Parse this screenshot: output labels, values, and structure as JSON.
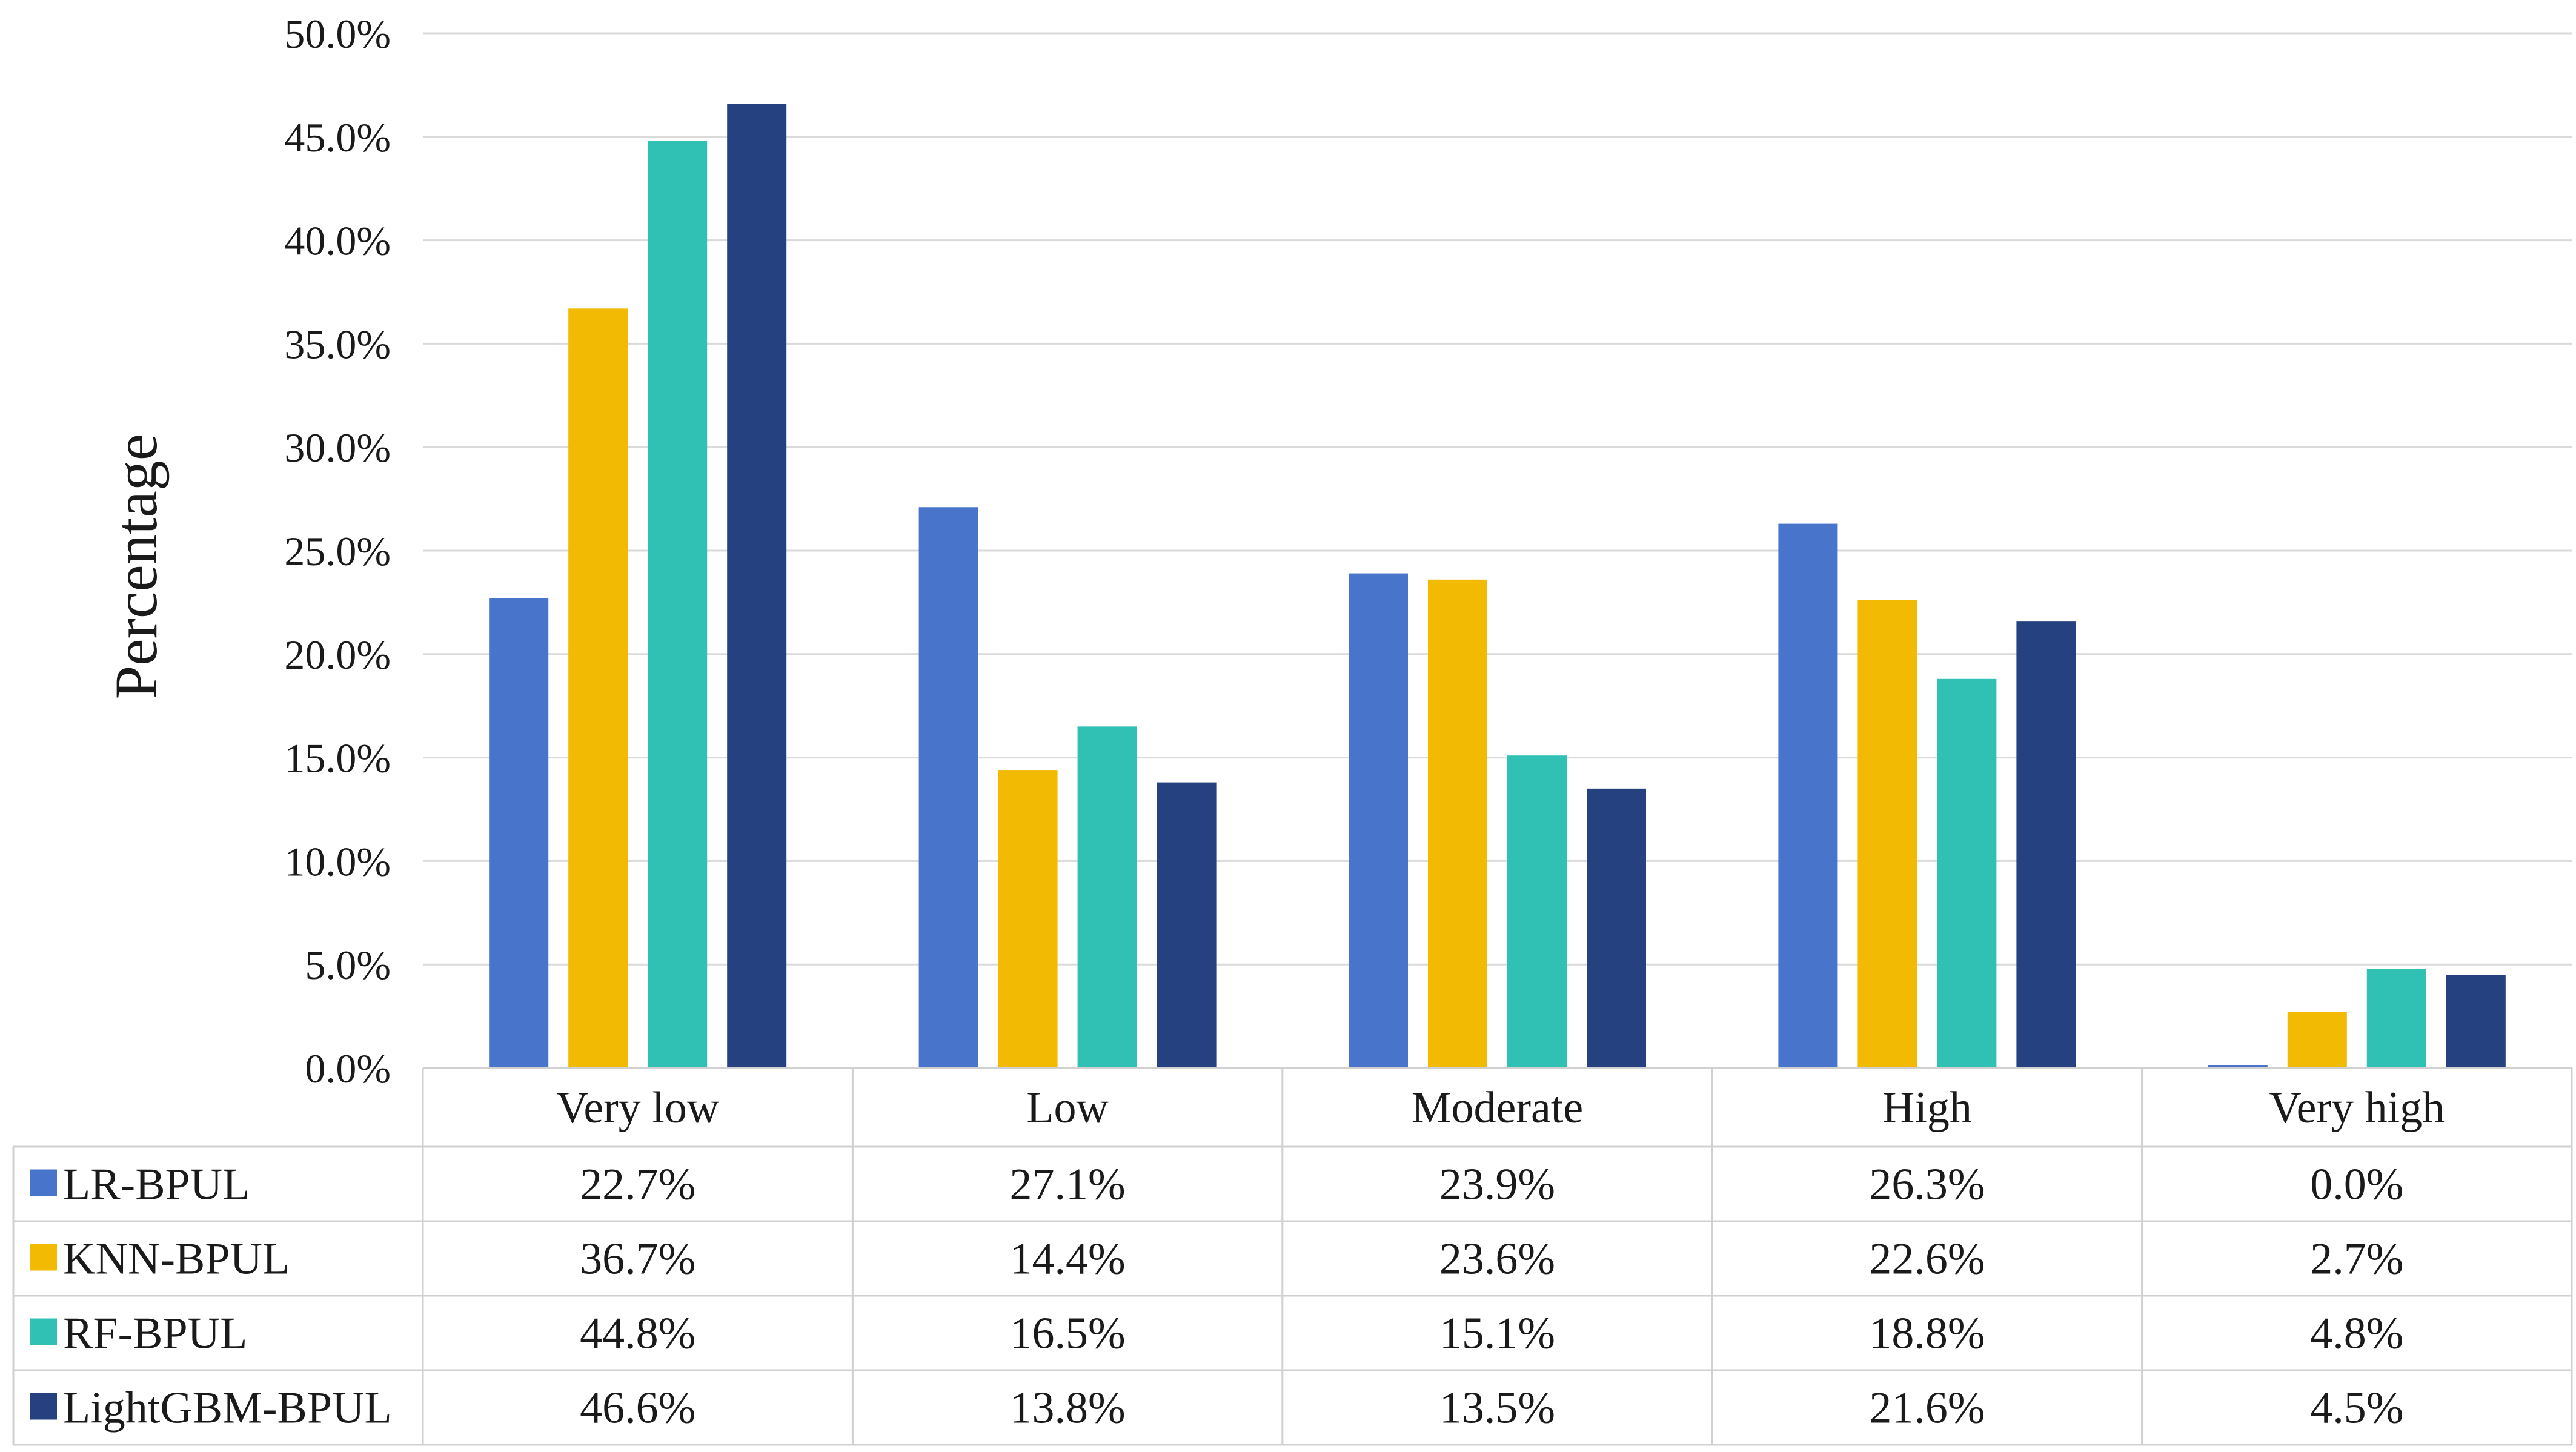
{
  "chart_data": {
    "type": "bar",
    "title": "",
    "xlabel": "",
    "ylabel": "Percentage",
    "ylim": [
      0,
      50
    ],
    "y_ticks": [
      "0.0%",
      "5.0%",
      "10.0%",
      "15.0%",
      "20.0%",
      "25.0%",
      "30.0%",
      "35.0%",
      "40.0%",
      "45.0%",
      "50.0%"
    ],
    "grid": true,
    "legend_placement": "data-table-left",
    "categories": [
      "Very low",
      "Low",
      "Moderate",
      "High",
      "Very high"
    ],
    "series": [
      {
        "name": "LR-BPUL",
        "color": "#4874CB",
        "values": [
          22.7,
          27.1,
          23.9,
          26.3,
          0.0
        ],
        "labels": [
          "22.7%",
          "27.1%",
          "23.9%",
          "26.3%",
          "0.0%"
        ]
      },
      {
        "name": "KNN-BPUL",
        "color": "#F2BA02",
        "values": [
          36.7,
          14.4,
          23.6,
          22.6,
          2.7
        ],
        "labels": [
          "36.7%",
          "14.4%",
          "23.6%",
          "22.6%",
          "2.7%"
        ]
      },
      {
        "name": "RF-BPUL",
        "color": "#30C0B4",
        "values": [
          44.8,
          16.5,
          15.1,
          18.8,
          4.8
        ],
        "labels": [
          "44.8%",
          "16.5%",
          "15.1%",
          "18.8%",
          "4.8%"
        ]
      },
      {
        "name": "LightGBM-BPUL",
        "color": "#25417F",
        "values": [
          46.6,
          13.8,
          13.5,
          21.6,
          4.5
        ],
        "labels": [
          "46.6%",
          "13.8%",
          "13.5%",
          "21.6%",
          "4.5%"
        ]
      }
    ]
  },
  "colors": {
    "gridline": "#DADADA",
    "table_border": "#D0D0D0",
    "text": "#1a1a1a"
  }
}
